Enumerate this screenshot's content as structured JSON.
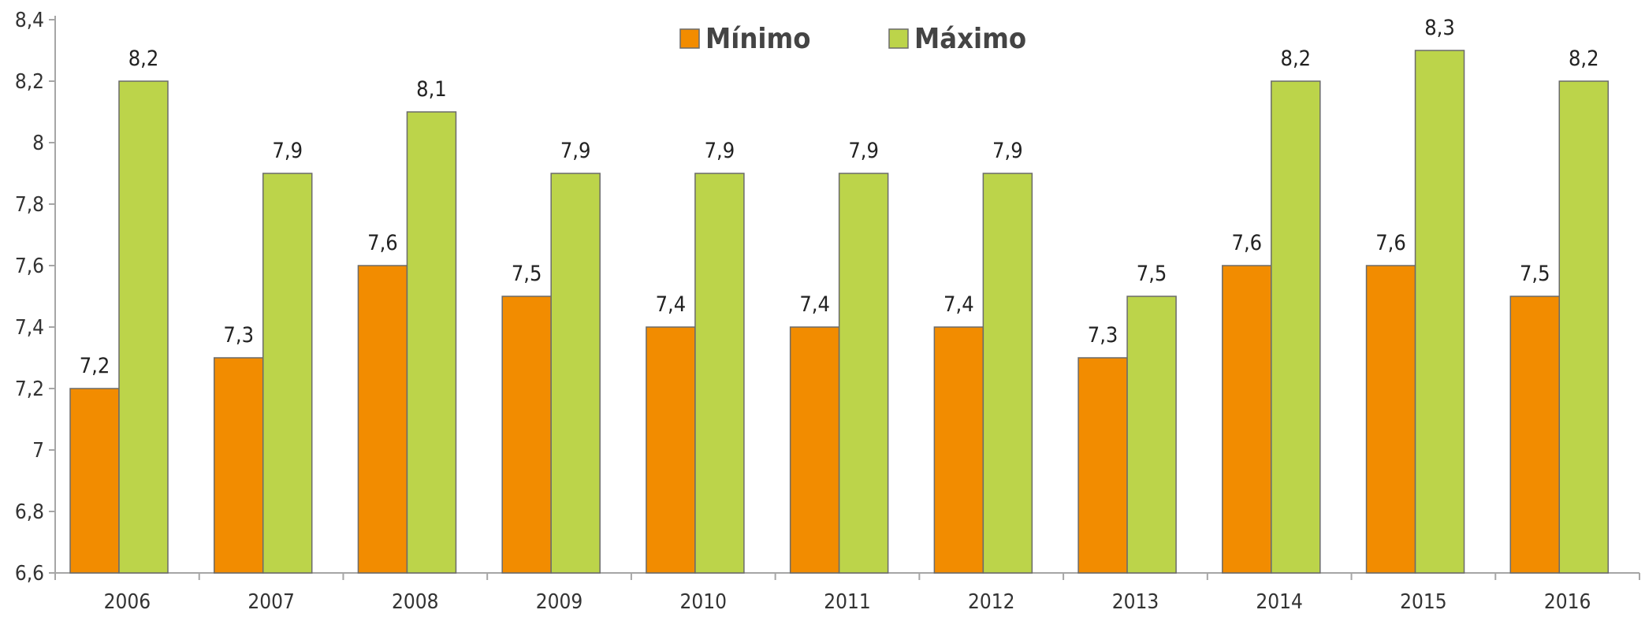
{
  "chart_data": {
    "type": "bar",
    "categories": [
      "2006",
      "2007",
      "2008",
      "2009",
      "2010",
      "2011",
      "2012",
      "2013",
      "2014",
      "2015",
      "2016"
    ],
    "series": [
      {
        "name": "Mínimo",
        "color": "#f28c00",
        "values": [
          7.2,
          7.3,
          7.6,
          7.5,
          7.4,
          7.4,
          7.4,
          7.3,
          7.6,
          7.6,
          7.5
        ],
        "labels": [
          "7,2",
          "7,3",
          "7,6",
          "7,5",
          "7,4",
          "7,4",
          "7,4",
          "7,3",
          "7,6",
          "7,6",
          "7,5"
        ]
      },
      {
        "name": "Máximo",
        "color": "#bcd44a",
        "values": [
          8.2,
          7.9,
          8.1,
          7.9,
          7.9,
          7.9,
          7.9,
          7.5,
          8.2,
          8.3,
          8.2
        ],
        "labels": [
          "8,2",
          "7,9",
          "8,1",
          "7,9",
          "7,9",
          "7,9",
          "7,9",
          "7,5",
          "8,2",
          "8,3",
          "8,2"
        ]
      }
    ],
    "ylim": [
      6.6,
      8.4
    ],
    "yticks": [
      6.6,
      6.8,
      7.0,
      7.2,
      7.4,
      7.6,
      7.8,
      8.0,
      8.2,
      8.4
    ],
    "ytick_labels": [
      "6,6",
      "6,8",
      "7",
      "7,2",
      "7,4",
      "7,6",
      "7,8",
      "8",
      "8,2",
      "8,4"
    ],
    "legend_position": "top-center",
    "grid": false
  }
}
